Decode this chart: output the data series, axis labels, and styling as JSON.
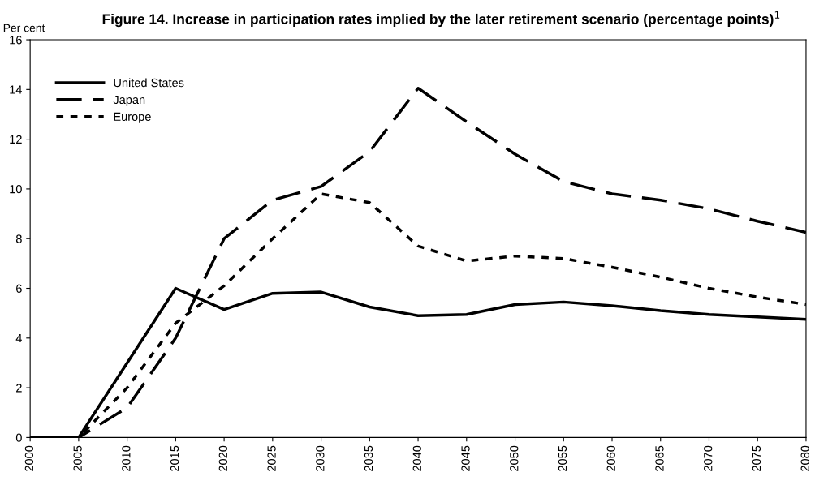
{
  "chart_data": {
    "type": "line",
    "title": "Figure 14. Increase in participation rates implied by the later retirement scenario (percentage points)$^{1}$",
    "ylabel": "Per cent",
    "x": [
      2000,
      2005,
      2010,
      2015,
      2020,
      2025,
      2030,
      2035,
      2040,
      2045,
      2050,
      2055,
      2060,
      2065,
      2070,
      2075,
      2080
    ],
    "series": [
      {
        "name": "United States",
        "color": "#000000",
        "line_style": "solid",
        "values": [
          0,
          0,
          3.0,
          6.0,
          5.15,
          5.8,
          5.85,
          5.25,
          4.9,
          4.95,
          5.35,
          5.45,
          5.3,
          5.1,
          4.95,
          4.85,
          4.75
        ]
      },
      {
        "name": "Japan",
        "color": "#000000",
        "line_style": "dashed",
        "values": [
          0,
          0,
          1.2,
          4.0,
          8.0,
          9.55,
          10.1,
          11.5,
          14.05,
          12.7,
          11.4,
          10.3,
          9.8,
          9.55,
          9.2,
          8.7,
          8.25
        ]
      },
      {
        "name": "Europe",
        "color": "#000000",
        "line_style": "dotted",
        "values": [
          0,
          0,
          2.0,
          4.6,
          6.1,
          8.0,
          9.8,
          9.45,
          7.7,
          7.1,
          7.3,
          7.2,
          6.85,
          6.45,
          6.0,
          5.65,
          5.35
        ]
      }
    ],
    "xlim": [
      2000,
      2080
    ],
    "xticks": [
      2000,
      2005,
      2010,
      2015,
      2020,
      2025,
      2030,
      2035,
      2040,
      2045,
      2050,
      2055,
      2060,
      2065,
      2070,
      2075,
      2080
    ],
    "ylim": [
      0,
      16
    ],
    "yticks": [
      0,
      2,
      4,
      6,
      8,
      10,
      12,
      14,
      16
    ],
    "grid": false,
    "legend": "top left",
    "marker": "none"
  }
}
